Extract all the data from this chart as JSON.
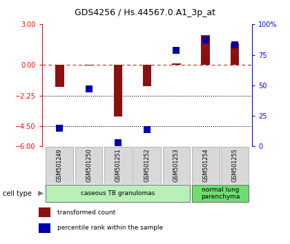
{
  "title": "GDS4256 / Hs.44567.0.A1_3p_at",
  "samples": [
    "GSM501249",
    "GSM501250",
    "GSM501251",
    "GSM501252",
    "GSM501253",
    "GSM501254",
    "GSM501255"
  ],
  "transformed_count": [
    -1.6,
    -0.05,
    -3.8,
    -1.55,
    0.1,
    2.2,
    1.6
  ],
  "percentile_rank": [
    15,
    47,
    3,
    14,
    79,
    87,
    83
  ],
  "ylim_left": [
    -6,
    3
  ],
  "ylim_right": [
    0,
    100
  ],
  "yticks_left": [
    3,
    0,
    -2.25,
    -4.5,
    -6
  ],
  "yticks_right": [
    100,
    75,
    50,
    25,
    0
  ],
  "bar_width": 0.3,
  "red_color": "#8B1010",
  "blue_color": "#0000AA",
  "cell_groups": [
    {
      "label": "caseous TB granulomas",
      "samples": [
        0,
        1,
        2,
        3,
        4
      ],
      "color": "#b8f0b8"
    },
    {
      "label": "normal lung\nparenchyma",
      "samples": [
        5,
        6
      ],
      "color": "#70dd70"
    }
  ],
  "legend_items": [
    {
      "color": "#8B1010",
      "label": "transformed count"
    },
    {
      "color": "#0000AA",
      "label": "percentile rank within the sample"
    }
  ],
  "background_color": "#ffffff"
}
